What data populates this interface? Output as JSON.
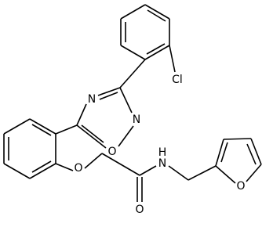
{
  "atoms": [
    {
      "label": "Cl"
    },
    {
      "label": "N"
    },
    {
      "label": "N"
    },
    {
      "label": "O"
    },
    {
      "label": "O"
    },
    {
      "label": "N"
    },
    {
      "label": "H"
    },
    {
      "label": "O"
    },
    {
      "label": "O"
    }
  ]
}
